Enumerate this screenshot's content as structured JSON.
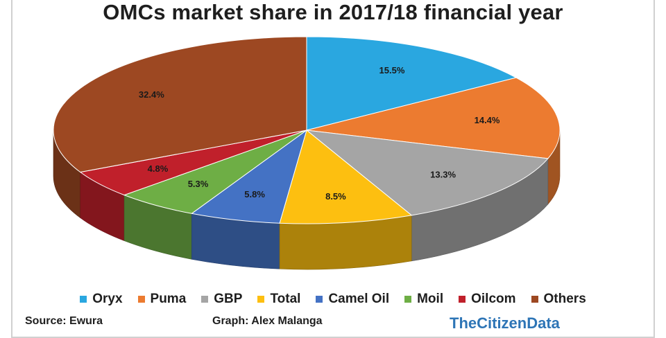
{
  "chart_data": {
    "type": "pie",
    "title": "OMCs  market share in 2017/18 financial year",
    "slices": [
      {
        "label": "Oryx",
        "value": 15.5,
        "text": "15.5%",
        "color": "#2aa7e0"
      },
      {
        "label": "Puma",
        "value": 14.4,
        "text": "14.4%",
        "color": "#ec7b30"
      },
      {
        "label": "GBP",
        "value": 13.3,
        "text": "13.3%",
        "color": "#a5a5a5"
      },
      {
        "label": "Total",
        "value": 8.5,
        "text": "8.5%",
        "color": "#fdbf10"
      },
      {
        "label": "Camel Oil",
        "value": 5.8,
        "text": "5.8%",
        "color": "#4472c4"
      },
      {
        "label": "Moil",
        "value": 5.3,
        "text": "5.3%",
        "color": "#6eae45"
      },
      {
        "label": "Oilcom",
        "value": 4.8,
        "text": "4.8%",
        "color": "#c0202b"
      },
      {
        "label": "Others",
        "value": 32.4,
        "text": "32.4%",
        "color": "#9d4822"
      }
    ],
    "legend_position": "bottom"
  },
  "footer": {
    "source": "Source: Ewura",
    "graph_by": "Graph: Alex Malanga",
    "brand": "TheCitizenData"
  }
}
